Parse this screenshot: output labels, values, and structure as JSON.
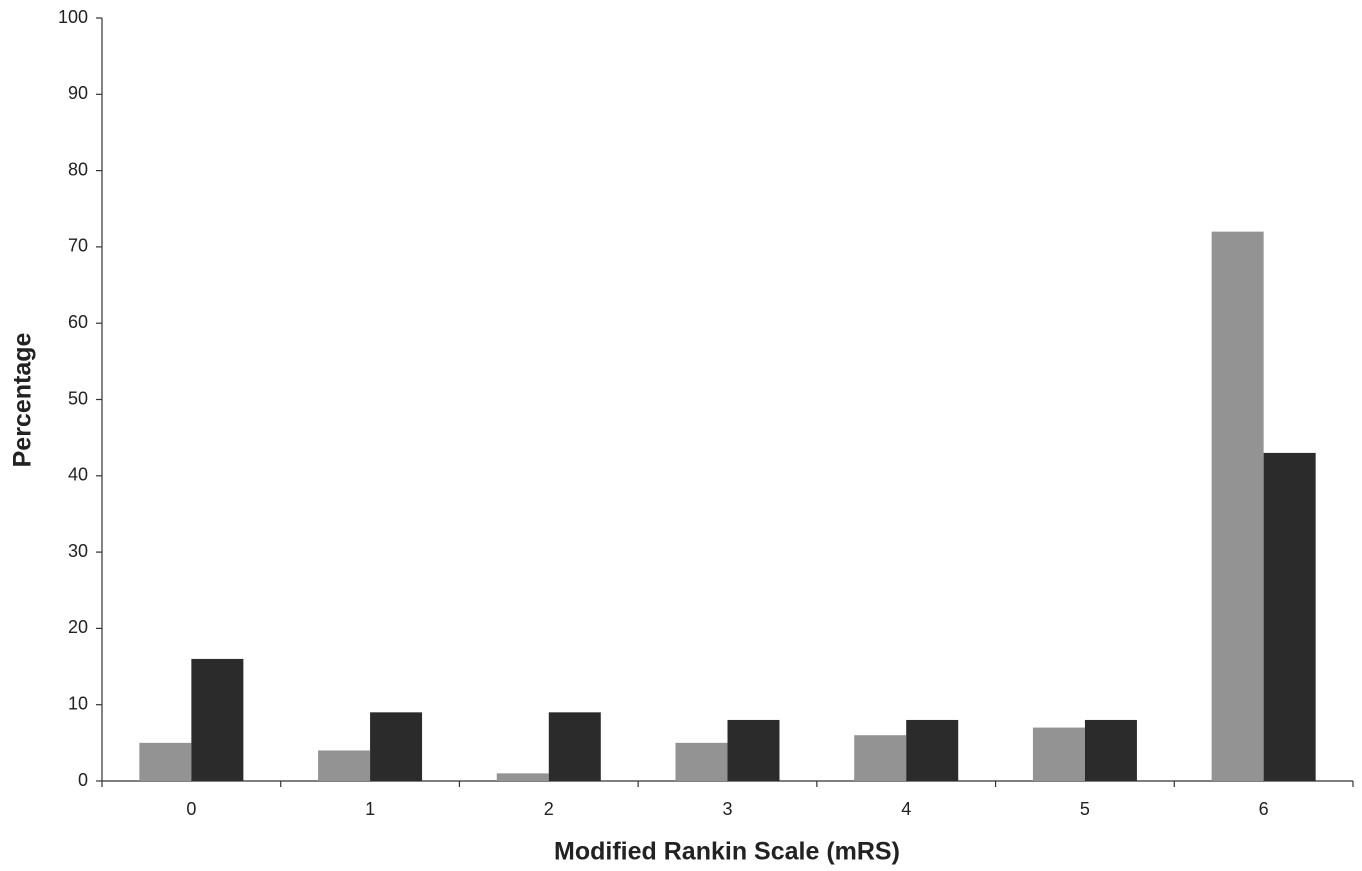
{
  "chart_data": {
    "type": "bar",
    "x_label": "Modified Rankin Scale (mRS)",
    "y_label": "Percentage",
    "categories": [
      "0",
      "1",
      "2",
      "3",
      "4",
      "5",
      "6"
    ],
    "series": [
      {
        "color": "#939393",
        "values": [
          5,
          4,
          1,
          5,
          6,
          7,
          72
        ]
      },
      {
        "color": "#2b2b2b",
        "values": [
          16,
          9,
          9,
          8,
          8,
          8,
          43
        ]
      }
    ],
    "ylim": [
      0,
      100
    ],
    "yticks": [
      0,
      10,
      20,
      30,
      40,
      50,
      60,
      70,
      80,
      90,
      100
    ],
    "grid": false
  }
}
